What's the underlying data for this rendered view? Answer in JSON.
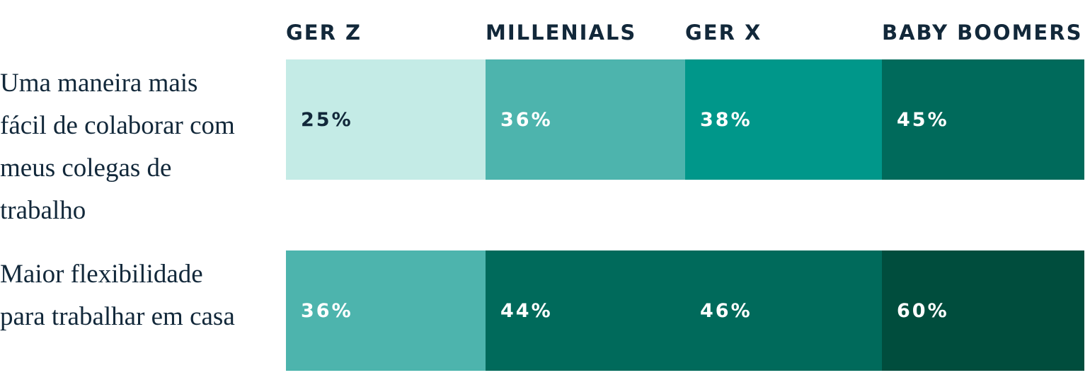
{
  "table": {
    "columns": [
      "GER Z",
      "MILLENIALS",
      "GER X",
      "BABY BOOMERS"
    ],
    "rows": [
      {
        "label": "Uma maneira mais fácil de colaborar com meus colegas de trabalho",
        "cells": [
          {
            "text": "25%",
            "color": "#c4ebe6",
            "text_color": "#12283a"
          },
          {
            "text": "36%",
            "color": "#4db4ad",
            "text_color": "#ffffff"
          },
          {
            "text": "38%",
            "color": "#00978a",
            "text_color": "#ffffff"
          },
          {
            "text": "45%",
            "color": "#006a5b",
            "text_color": "#ffffff"
          }
        ]
      },
      {
        "label": "Maior flexibilidade para trabalhar em casa",
        "cells": [
          {
            "text": "36%",
            "color": "#4db4ad",
            "text_color": "#ffffff"
          },
          {
            "text": "44%",
            "color": "#006a5b",
            "text_color": "#ffffff"
          },
          {
            "text": "46%",
            "color": "#006a5b",
            "text_color": "#ffffff"
          },
          {
            "text": "60%",
            "color": "#004d3d",
            "text_color": "#ffffff"
          }
        ]
      }
    ]
  }
}
